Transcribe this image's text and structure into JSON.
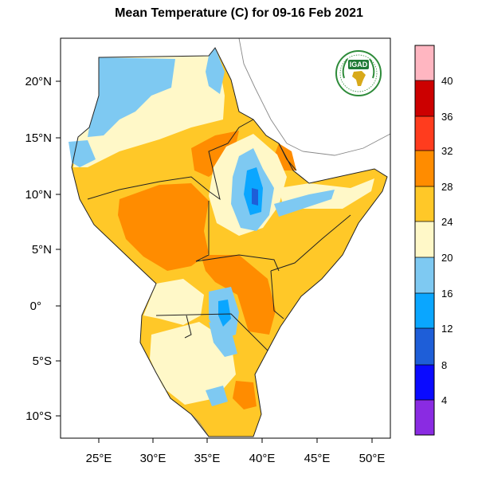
{
  "title": "Mean Temperature (C) for 09-16 Feb 2021",
  "logo": {
    "text": "IGAD",
    "colors": {
      "ring": "#2e8b3a",
      "badge": "#1f7a35",
      "africa": "#d8a91a"
    }
  },
  "axes": {
    "lon_ticks": [
      "25°E",
      "30°E",
      "35°E",
      "40°E",
      "45°E",
      "50°E"
    ],
    "lat_ticks": [
      "20°N",
      "15°N",
      "10°N",
      "5°N",
      "0°",
      "5°S",
      "10°S"
    ]
  },
  "map_data": {
    "lon_range": [
      21.7,
      51.5
    ],
    "lat_range": [
      -12.0,
      23.7
    ],
    "regions_depicted": "Mean temperature over the Greater Horn of Africa (IGAD region)"
  },
  "colorbar": {
    "labels": [
      "4",
      "8",
      "12",
      "16",
      "20",
      "24",
      "28",
      "32",
      "36",
      "40"
    ],
    "colors": [
      "#8a2be2",
      "#0a0aff",
      "#1e5ed8",
      "#0aa6ff",
      "#7ec9f2",
      "#fff8c8",
      "#ffc828",
      "#ff8c00",
      "#ff3c1e",
      "#cc0000",
      "#ffb6c1"
    ]
  }
}
